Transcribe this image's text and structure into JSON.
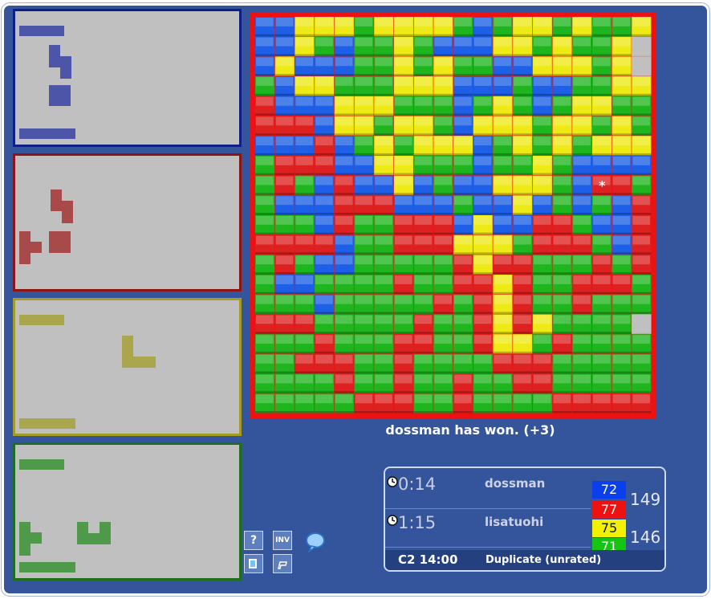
{
  "game": {
    "status": "dossman has won. (+3)",
    "colors": {
      "blue": "#1d5fe6",
      "red": "#dd2020",
      "yellow": "#eeea16",
      "green": "#1fb51f",
      "empty": "#c0c0c0"
    },
    "board_rows": [
      "BBYYYGYYYYGBGYYGYGGY",
      "BBYGBGGYGBBBYYGYGGY",
      "BYBBBGGYGYGGBBYYYGY",
      "GBYYGGGYYYBBBGBBGGYY",
      "RBBBYYYGGGBGYGBGYYGG",
      "RRRBYYGYYGBYYYGYYGYG",
      "BBBRBGYGYYYBGYGYGYYY",
      "GRRRBBYYGGGBGGYGBBBB",
      "GRGBRBBYBGBBYYYGB*RG",
      "GBBBRRRBBBGBBYBGBGBR",
      "GGGBRGGRRRBYBBRRGBBR",
      "RRRRBGGRRRYYYGRRRGBR",
      "GRGBBGGGGGRYRRGGGRGR",
      "GBBGGGGRGGRRYRGGRRRG",
      "GGGBGGGGGRGRYRGGRGGG",
      "RRRGGGGGRGGRYRYGGGG",
      "GGGRGGGRRGGRYYGRGGGG",
      "GGRRRGGRGGGGRRRGGGGG",
      "GGGGRGGRGGRGGRRGGGGG",
      "GGGGGRRRGGRGGGGRRRRR"
    ],
    "move_marker": "*",
    "players": [
      {
        "time": "0:14",
        "name": "dossman",
        "scores": [
          {
            "value": "72",
            "color": "#0a3fee"
          },
          {
            "value": "77",
            "color": "#ee1111"
          }
        ],
        "total": "149"
      },
      {
        "time": "1:15",
        "name": "lisatuohi",
        "scores": [
          {
            "value": "75",
            "color": "#f2f200"
          },
          {
            "value": "71",
            "color": "#16c416"
          }
        ],
        "total": "146"
      }
    ],
    "game_clock": "C2 14:00",
    "game_type": "Duplicate (unrated)"
  },
  "panels": [
    {
      "color": "blue",
      "border": "#0e1f86",
      "fill": "#4d55a8",
      "label": "Blue pieces"
    },
    {
      "color": "red",
      "border": "#8e1414",
      "fill": "#a84a4a",
      "label": "Red pieces"
    },
    {
      "color": "yellow",
      "border": "#a49c22",
      "fill": "#a9a64e",
      "label": "Yellow pieces"
    },
    {
      "color": "green",
      "border": "#1f6e1a",
      "fill": "#4e9a4a",
      "label": "Green pieces"
    }
  ],
  "tools": {
    "help": "?",
    "inv": "INV",
    "chat": "chat-bubble-icon",
    "flag": "flag-icon",
    "leave": "chair-icon"
  }
}
